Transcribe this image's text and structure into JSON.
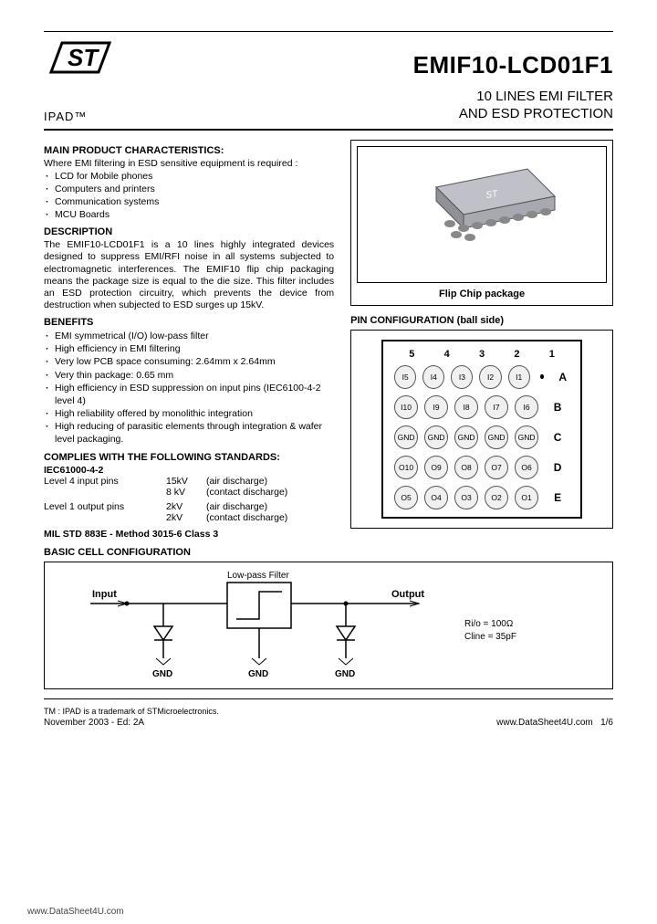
{
  "header": {
    "part_number": "EMIF10-LCD01F1",
    "ipad": "IPAD™",
    "subtitle_line1": "10 LINES EMI FILTER",
    "subtitle_line2": "AND ESD PROTECTION"
  },
  "main_characteristics": {
    "title": "MAIN PRODUCT CHARACTERISTICS:",
    "intro": "Where EMI filtering in ESD sensitive equipment is required :",
    "items": [
      "LCD for Mobile phones",
      "Computers and printers",
      "Communication systems",
      "MCU Boards"
    ]
  },
  "description": {
    "title": "DESCRIPTION",
    "body": "The EMIF10-LCD01F1 is a 10 lines highly integrated devices designed to suppress EMI/RFI noise in all systems subjected to electromagnetic interferences. The EMIF10 flip chip packaging means the package size is equal to the die size. This filter includes an ESD protection circuitry, which prevents the device from destruction when subjected to ESD surges up 15kV."
  },
  "benefits": {
    "title": "BENEFITS",
    "items": [
      "EMI symmetrical (I/O) low-pass filter",
      "High efficiency in EMI filtering",
      "Very low PCB space consuming: 2.64mm x 2.64mm",
      "Very thin package: 0.65 mm",
      "High efficiency in ESD suppression on input pins (IEC6100-4-2 level 4)",
      "High reliability offered by monolithic integration",
      "High reducing of parasitic elements through integration & wafer level packaging."
    ]
  },
  "standards": {
    "title": "COMPLIES WITH THE FOLLOWING STANDARDS:",
    "iec": "IEC61000-4-2",
    "rows": [
      {
        "label": "Level 4   input pins",
        "v1": "15kV",
        "d1": "(air discharge)",
        "v2": "8 kV",
        "d2": "(contact discharge)"
      },
      {
        "label": "Level 1  output pins",
        "v1": "2kV",
        "d1": "(air discharge)",
        "v2": "2kV",
        "d2": "(contact discharge)"
      }
    ],
    "mil": "MIL STD 883E - Method 3015-6 Class 3"
  },
  "package": {
    "caption": "Flip Chip package"
  },
  "pin": {
    "title": "PIN CONFIGURATION (ball side)",
    "cols": [
      "5",
      "4",
      "3",
      "2",
      "1"
    ],
    "rows": [
      {
        "label": "A",
        "balls": [
          "I5",
          "I4",
          "I3",
          "I2",
          "I1"
        ]
      },
      {
        "label": "B",
        "balls": [
          "I10",
          "I9",
          "I8",
          "I7",
          "I6"
        ]
      },
      {
        "label": "C",
        "balls": [
          "GND",
          "GND",
          "GND",
          "GND",
          "GND"
        ]
      },
      {
        "label": "D",
        "balls": [
          "O10",
          "O9",
          "O8",
          "O7",
          "O6"
        ]
      },
      {
        "label": "E",
        "balls": [
          "O5",
          "O4",
          "O3",
          "O2",
          "O1"
        ]
      }
    ]
  },
  "cell": {
    "title": "BASIC CELL CONFIGURATION",
    "filter_label": "Low-pass Filter",
    "input": "Input",
    "output": "Output",
    "gnd": "GND",
    "rio": "Ri/o = 100Ω",
    "cline": "Cline = 35pF"
  },
  "footer": {
    "tm": "TM : IPAD is a trademark of STMicroelectronics.",
    "date": "November 2003 - Ed: 2A",
    "url": "www.DataSheet4U.com",
    "page": "1/6"
  }
}
